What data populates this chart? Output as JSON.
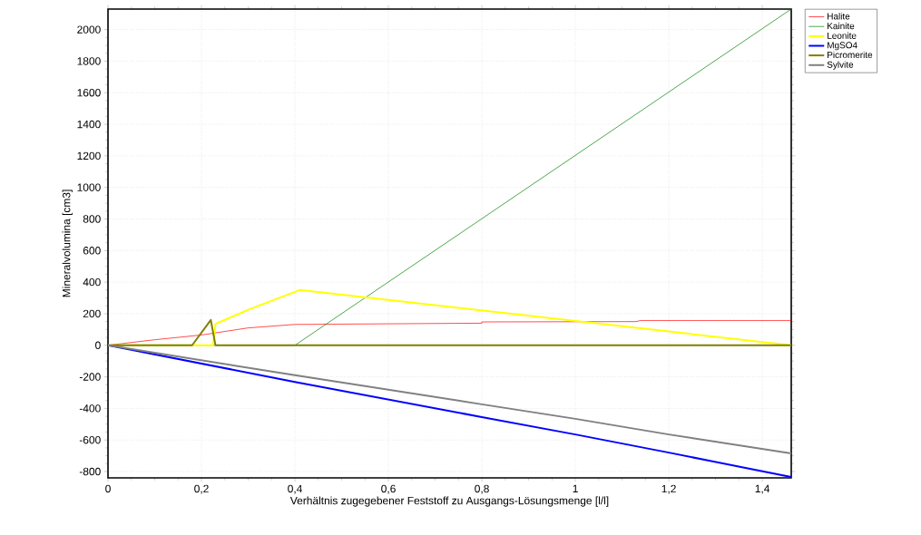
{
  "chart_data": {
    "type": "line",
    "xlabel": "Verhältnis zugegebener Feststoff zu Ausgangs-Lösungsmenge [l/l]",
    "ylabel": "Mineralvolumina [cm3]",
    "xlim": [
      0,
      1.462
    ],
    "ylim": [
      -840,
      2130
    ],
    "xticks": [
      0,
      {
        "value": 0.2,
        "label": "0,2"
      },
      {
        "value": 0.4,
        "label": "0,4"
      },
      {
        "value": 0.6,
        "label": "0,6"
      },
      {
        "value": 0.8,
        "label": "0,8"
      },
      1,
      {
        "value": 1.2,
        "label": "1,2"
      },
      {
        "value": 1.4,
        "label": "1,4"
      }
    ],
    "yticks": [
      -800,
      -600,
      -400,
      -200,
      0,
      200,
      400,
      600,
      800,
      1000,
      1200,
      1400,
      1600,
      1800,
      2000
    ],
    "grid": true,
    "legend": "top right",
    "marker": "none",
    "line_style": "solid",
    "series": [
      {
        "name": "Halite",
        "color": "#ff0000",
        "x": [
          0,
          0.1,
          0.2,
          0.3,
          0.4,
          0.8,
          0.8,
          1.13,
          1.14,
          1.462
        ],
        "values": [
          0,
          35,
          65,
          110,
          132,
          140,
          148,
          150,
          157,
          157
        ]
      },
      {
        "name": "Kainite",
        "color": "#008000",
        "x": [
          0,
          0.4,
          1,
          1.462
        ],
        "values": [
          0,
          0,
          1203,
          2130
        ]
      },
      {
        "name": "Leonite",
        "color": "#ffff00",
        "x": [
          0,
          0.225,
          0.23,
          0.3,
          0.41,
          1.462
        ],
        "values": [
          0,
          0,
          135,
          225,
          350,
          0
        ]
      },
      {
        "name": "MgSO4",
        "color": "#0000ff",
        "x": [
          0,
          0.4,
          0.8,
          1,
          1.2,
          1.462
        ],
        "values": [
          0,
          -232,
          -455,
          -565,
          -680,
          -835
        ]
      },
      {
        "name": "Picromerite",
        "color": "#808000",
        "x": [
          0,
          0.18,
          0.22,
          0.23,
          1.462
        ],
        "values": [
          0,
          0,
          160,
          0,
          0
        ]
      },
      {
        "name": "Sylvite",
        "color": "#808080",
        "x": [
          0,
          0.4,
          0.8,
          1,
          1.2,
          1.462
        ],
        "values": [
          0,
          -190,
          -374,
          -466,
          -565,
          -685
        ]
      }
    ]
  }
}
